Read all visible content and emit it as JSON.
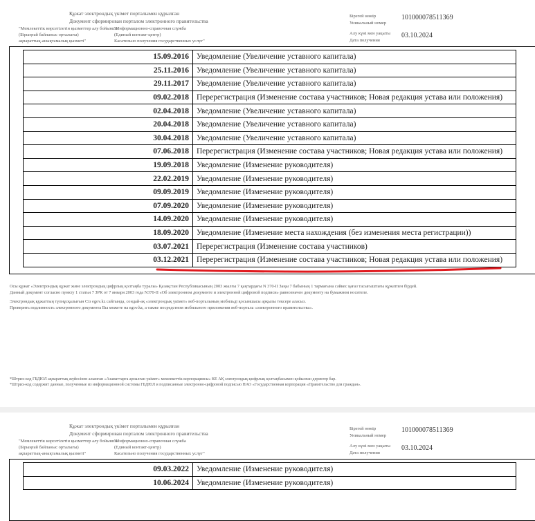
{
  "header": {
    "center_line1": "Құжат электрондық үкімет порталымен құрылған",
    "center_line2": "Документ сформирован порталом электронного правительства",
    "left_col": [
      "\"Мемлекеттік көрсетілетін қызметтер алу бойынша",
      "(Бірыңғай байланыс орталығы)",
      "ақпараттық-анықтамалық қызметі\""
    ],
    "mid_col": [
      "\"Информационно-справочная служба",
      "(Единый контакт-центр)",
      "Касательно получения государственных услуг\""
    ],
    "unique_label_kz": "Бірегей нөмір",
    "unique_label_ru": "Уникальный номер",
    "unique_value": "101000078511369",
    "date_label_kz": "Алу күні мен уақыты",
    "date_label_ru": "Дата получения",
    "date_value": "03.10.2024"
  },
  "page1_rows": [
    {
      "date": "15.09.2016",
      "event": "Уведомление (Увеличение уставного капитала)"
    },
    {
      "date": "25.11.2016",
      "event": "Уведомление (Увеличение уставного капитала)"
    },
    {
      "date": "29.11.2017",
      "event": "Уведомление (Увеличение уставного капитала)"
    },
    {
      "date": "09.02.2018",
      "event": "Перерегистрация  (Изменение состава участников; Новая редакция устава или положения)"
    },
    {
      "date": "02.04.2018",
      "event": "Уведомление (Увеличение уставного капитала)"
    },
    {
      "date": "20.04.2018",
      "event": "Уведомление (Увеличение уставного капитала)"
    },
    {
      "date": "30.04.2018",
      "event": "Уведомление (Увеличение уставного капитала)"
    },
    {
      "date": "07.06.2018",
      "event": "Перерегистрация  (Изменение состава участников; Новая редакция устава или положения)"
    },
    {
      "date": "19.09.2018",
      "event": "Уведомление (Изменение руководителя)"
    },
    {
      "date": "22.02.2019",
      "event": "Уведомление (Изменение руководителя)"
    },
    {
      "date": "09.09.2019",
      "event": "Уведомление (Изменение руководителя)"
    },
    {
      "date": "07.09.2020",
      "event": "Уведомление (Изменение руководителя)"
    },
    {
      "date": "14.09.2020",
      "event": "Уведомление (Изменение руководителя)"
    },
    {
      "date": "18.09.2020",
      "event": "Уведомление (Изменение места нахождения (без изменения места регистрации))"
    },
    {
      "date": "03.07.2021",
      "event": "Перерегистрация  (Изменение состава участников)"
    },
    {
      "date": "03.12.2021",
      "event": "Перерегистрация  (Изменение состава участников; Новая редакция устава или положения)"
    }
  ],
  "page2_rows": [
    {
      "date": "09.03.2022",
      "event": "Уведомление (Изменение руководителя)"
    },
    {
      "date": "10.06.2024",
      "event": "Уведомление (Изменение руководителя)"
    }
  ],
  "notes": [
    "Осы құжат «Электрондық құжат және электрондық цифрлық қолтаңба туралы» Қазақстан Республикасының 2003 жылғы 7 қаңтардағы N 370-II Заңы 7 бабының 1 тармағына сәйкес қағаз тасығыштағы құжатпен бірдей.",
    "Данный документ согласно пункту 1 статьи 7 ЗРК от  7 января 2003 года N370-II «Об электронном документе и электронной цифровой подписи» равнозначен документу на бумажном носителе.",
    "Электрондық құжаттың түпнұсқалығын Сіз egov.kz сайтында, сондай-ақ «электрондық үкімет» веб-порталының мобильді қосымшасы арқылы тексере аласыз.",
    "Проверить подлинность электронного документа Вы можете на egov.kz, а также посредством мобильного приложения веб-портала «электронного правительства»."
  ],
  "footnotes": [
    "*Штрих-код ГБДЮЛ ақпараттық жүйесінен алынған «Азаматтарға арналған үкімет» мемлекеттік корпорациясы» КЕ АҚ электрондық-цифрлық қолтаңбасымен қойылған деректер бар.",
    "*Штрих-код содержит данные, полученные из информационной системы ГБДЮЛ и подписанные электронно-цифровой подписью НАО «Государственная корпорация «Правительство для граждан»."
  ],
  "colors": {
    "underline": "#e0191e"
  }
}
